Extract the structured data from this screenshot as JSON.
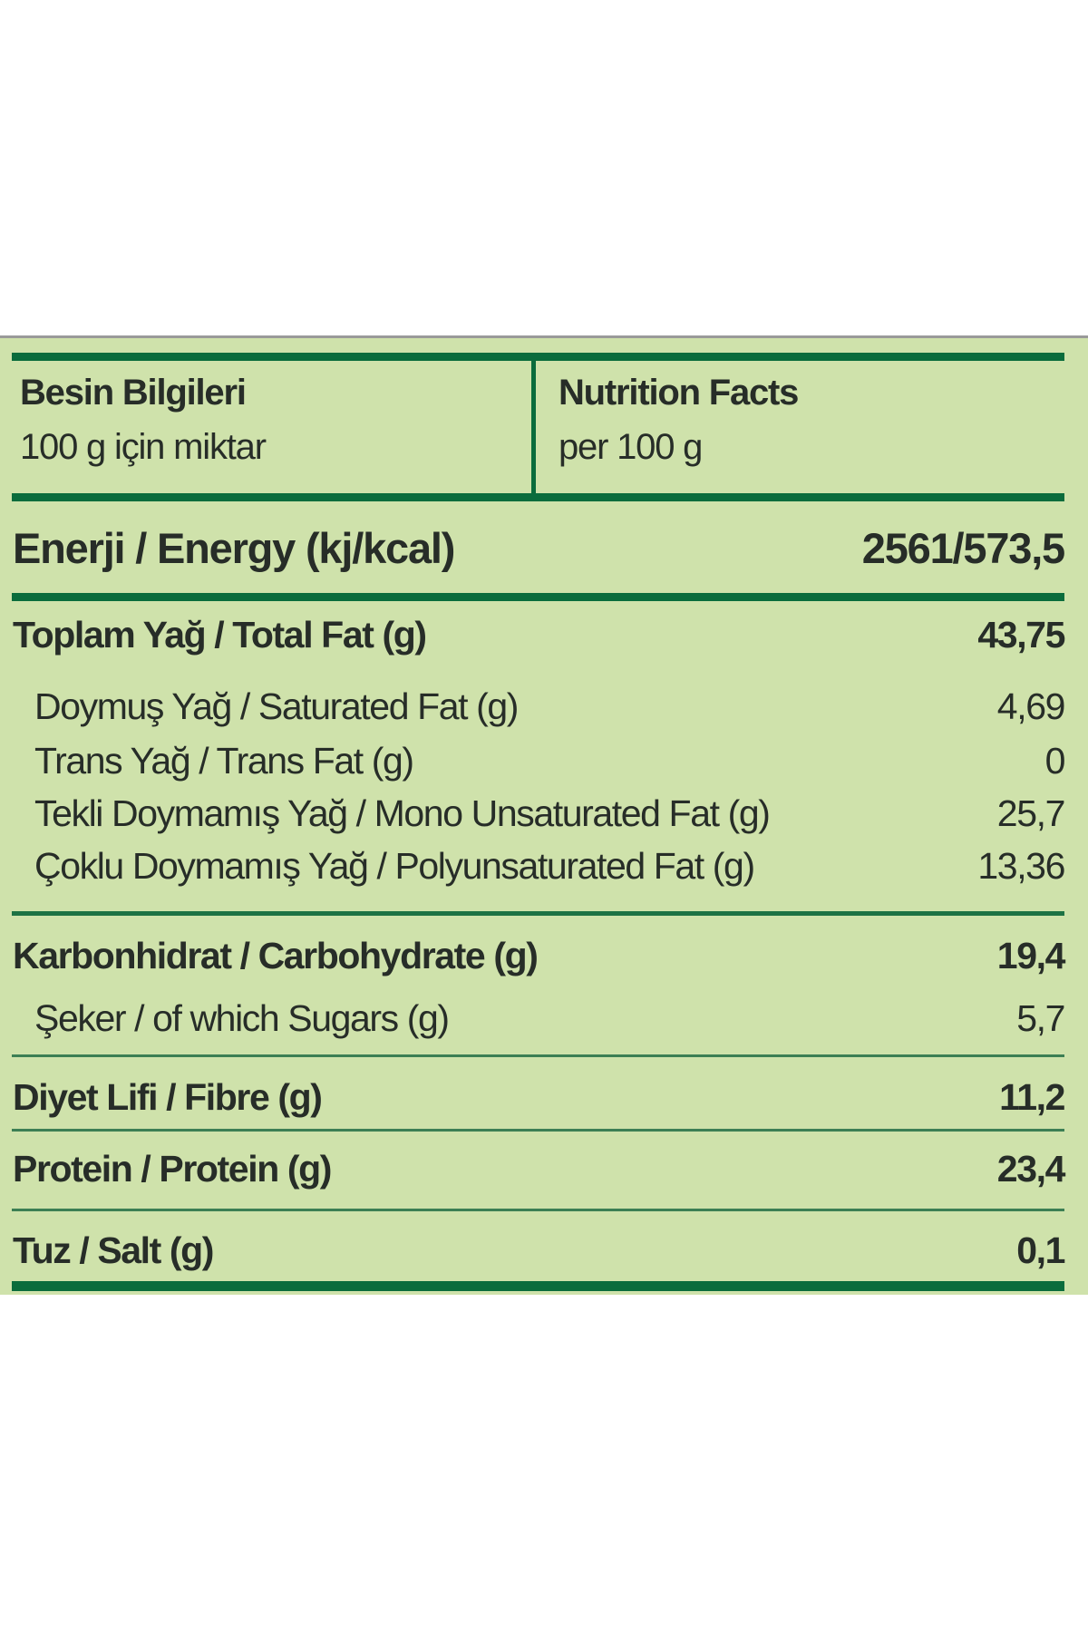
{
  "colors": {
    "page_background": "#ffffff",
    "panel_background": "#cfe2ab",
    "rule_dark_green": "#0a6c3c",
    "rule_thin_green": "#3c7f54",
    "text": "#272d28",
    "top_rule_gray": "#9a9a9a"
  },
  "header": {
    "left": {
      "title": "Besin Bilgileri",
      "subtitle": "100 g için miktar"
    },
    "right": {
      "title": "Nutrition Facts",
      "subtitle": "per 100 g"
    }
  },
  "energy": {
    "label": "Enerji / Energy (kj/kcal)",
    "value": "2561/573,5"
  },
  "rows": [
    {
      "label": "Toplam Yağ / Total Fat (g)",
      "value": "43,75"
    },
    {
      "label": "Doymuş Yağ / Saturated Fat (g)",
      "value": "4,69"
    },
    {
      "label": "Trans Yağ / Trans Fat (g)",
      "value": "0"
    },
    {
      "label": "Tekli Doymamış Yağ / Mono Unsaturated Fat (g)",
      "value": "25,7"
    },
    {
      "label": "Çoklu Doymamış Yağ / Polyunsaturated Fat (g)",
      "value": "13,36"
    },
    {
      "label": "Karbonhidrat / Carbohydrate (g)",
      "value": "19,4"
    },
    {
      "label": "Şeker / of which Sugars (g)",
      "value": "5,7"
    },
    {
      "label": "Diyet Lifi / Fibre (g)",
      "value": "11,2"
    },
    {
      "label": "Protein / Protein (g)",
      "value": "23,4"
    },
    {
      "label": "Tuz / Salt (g)",
      "value": "0,1"
    }
  ]
}
